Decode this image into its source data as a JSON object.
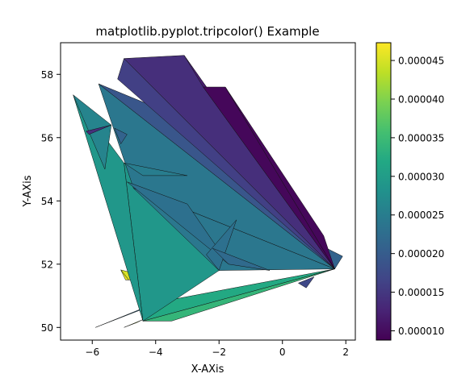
{
  "chart_data": {
    "type": "heatmap",
    "subtype": "tripcolor",
    "title": "matplotlib.pyplot.tripcolor() Example",
    "xlabel": "X-AXis",
    "ylabel": "Y-AXis",
    "xlim": [
      -7.0,
      2.3
    ],
    "ylim": [
      49.6,
      59.0
    ],
    "xticks": [
      -6,
      -4,
      -2,
      0,
      2
    ],
    "xtick_labels": [
      "−6",
      "−4",
      "−2",
      "0",
      "2"
    ],
    "yticks": [
      50,
      52,
      54,
      56,
      58
    ],
    "ytick_labels": [
      "50",
      "52",
      "54",
      "56",
      "58"
    ],
    "colormap": "viridis",
    "colorbar": {
      "vmin": 8.8e-06,
      "vmax": 4.73e-05,
      "ticks": [
        1e-05,
        1.5e-05,
        2e-05,
        2.5e-05,
        3e-05,
        3.5e-05,
        4e-05,
        4.5e-05
      ],
      "tick_labels": [
        "0.000010",
        "0.000015",
        "0.000020",
        "0.000025",
        "0.000030",
        "0.000035",
        "0.000040",
        "0.000045"
      ]
    },
    "triangles": [
      {
        "pts": [
          [
            -6.6,
            57.35
          ],
          [
            -5.2,
            53.0
          ],
          [
            -4.9,
            53.9
          ]
        ],
        "v": 3.6e-05
      },
      {
        "pts": [
          [
            -5.1,
            51.82
          ],
          [
            -4.05,
            51.55
          ],
          [
            -4.85,
            51.5
          ]
        ],
        "v": 4.5e-05
      },
      {
        "pts": [
          [
            -5.1,
            51.82
          ],
          [
            -4.85,
            51.5
          ],
          [
            -4.95,
            51.5
          ]
        ],
        "v": 4.6e-05
      },
      {
        "pts": [
          [
            -5.9,
            50.0
          ],
          [
            -4.3,
            50.65
          ],
          [
            -4.35,
            50.6
          ]
        ],
        "v": 2.2e-05
      },
      {
        "pts": [
          [
            -5.0,
            50.0
          ],
          [
            -4.4,
            50.25
          ],
          [
            -4.6,
            50.15
          ]
        ],
        "v": 4.3e-05
      },
      {
        "pts": [
          [
            -4.4,
            50.2
          ],
          [
            1.65,
            51.85
          ],
          [
            -4.45,
            50.7
          ]
        ],
        "v": 3.2e-05
      },
      {
        "pts": [
          [
            -4.4,
            50.2
          ],
          [
            -3.5,
            50.2
          ],
          [
            1.65,
            51.85
          ]
        ],
        "v": 3.4e-05
      },
      {
        "pts": [
          [
            -5.0,
            55.2
          ],
          [
            -1.7,
            52.0
          ],
          [
            -4.4,
            50.2
          ]
        ],
        "v": 2.9e-05
      },
      {
        "pts": [
          [
            -6.6,
            57.35
          ],
          [
            -5.0,
            55.2
          ],
          [
            -4.4,
            50.2
          ]
        ],
        "v": 2.9e-05
      },
      {
        "pts": [
          [
            -6.6,
            57.35
          ],
          [
            -5.6,
            55.0
          ],
          [
            -5.4,
            56.4
          ]
        ],
        "v": 2.6e-05
      },
      {
        "pts": [
          [
            -5.8,
            57.7
          ],
          [
            1.65,
            51.85
          ],
          [
            -4.7,
            54.4
          ]
        ],
        "v": 2.4e-05
      },
      {
        "pts": [
          [
            -4.7,
            54.4
          ],
          [
            1.65,
            51.85
          ],
          [
            -2.0,
            51.8
          ]
        ],
        "v": 2.4e-05
      },
      {
        "pts": [
          [
            -5.0,
            55.2
          ],
          [
            -4.4,
            54.8
          ],
          [
            -3.0,
            54.8
          ]
        ],
        "v": 2.5e-05
      },
      {
        "pts": [
          [
            -4.9,
            54.6
          ],
          [
            -1.7,
            52.0
          ],
          [
            -3.0,
            53.9
          ]
        ],
        "v": 2.3e-05
      },
      {
        "pts": [
          [
            -2.4,
            52.3
          ],
          [
            -1.45,
            53.4
          ],
          [
            -2.0,
            51.8
          ]
        ],
        "v": 2.3e-05
      },
      {
        "pts": [
          [
            -2.2,
            52.5
          ],
          [
            -1.7,
            52.0
          ],
          [
            -0.4,
            51.8
          ]
        ],
        "v": 2.2e-05
      },
      {
        "pts": [
          [
            0.5,
            51.4
          ],
          [
            1.0,
            51.6
          ],
          [
            0.75,
            51.25
          ]
        ],
        "v": 1.7e-05
      },
      {
        "pts": [
          [
            1.2,
            52.6
          ],
          [
            1.9,
            52.25
          ],
          [
            1.65,
            51.85
          ]
        ],
        "v": 2.1e-05
      },
      {
        "pts": [
          [
            -5.8,
            57.7
          ],
          [
            1.65,
            51.85
          ],
          [
            -4.1,
            57.0
          ]
        ],
        "v": 1.9e-05
      },
      {
        "pts": [
          [
            -5.3,
            56.3
          ],
          [
            -5.1,
            55.8
          ],
          [
            -4.9,
            56.1
          ]
        ],
        "v": 2.1e-05
      },
      {
        "pts": [
          [
            -6.2,
            56.2
          ],
          [
            -5.4,
            56.4
          ],
          [
            -6.1,
            56.1
          ]
        ],
        "v": 1.4e-05
      },
      {
        "pts": [
          [
            -5.0,
            58.5
          ],
          [
            1.65,
            51.85
          ],
          [
            -5.2,
            57.85
          ]
        ],
        "v": 1.6e-05
      },
      {
        "pts": [
          [
            -5.0,
            58.5
          ],
          [
            -3.1,
            58.6
          ],
          [
            1.65,
            51.85
          ]
        ],
        "v": 1.4e-05
      },
      {
        "pts": [
          [
            -3.1,
            58.6
          ],
          [
            -2.5,
            57.6
          ],
          [
            1.65,
            51.85
          ]
        ],
        "v": 1.2e-05
      },
      {
        "pts": [
          [
            -2.5,
            57.6
          ],
          [
            -1.8,
            57.6
          ],
          [
            1.65,
            51.85
          ]
        ],
        "v": 9.5e-06
      },
      {
        "pts": [
          [
            -1.8,
            57.6
          ],
          [
            1.3,
            52.9
          ],
          [
            1.65,
            51.85
          ]
        ],
        "v": 9.5e-06
      }
    ]
  }
}
